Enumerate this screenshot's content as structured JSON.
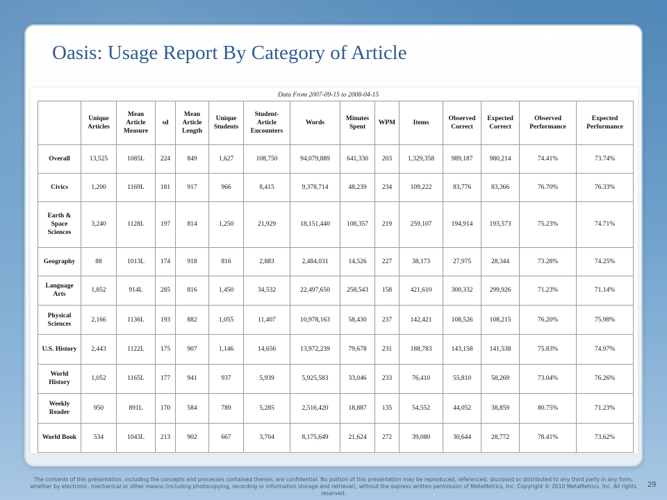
{
  "slide": {
    "title": "Oasis: Usage Report By Category of Article",
    "page_number": "29",
    "footer": "The contents of this presentation, including the concepts and processes contained therein, are confidential. No portion of this presentation may be reproduced, referenced, disclosed or distributed to any third party in any form, whether by electronic, mechanical or other means (including photocopying, recording or information storage and retrieval), without the express written permission of MetaMetrics, Inc. Copyright © 2010 MetaMetrics, Inc. All rights reserved."
  },
  "table": {
    "caption": "Data From 2007-09-15 to 2008-04-15",
    "headers": [
      "",
      "Unique Articles",
      "Mean Article Measure",
      "sd",
      "Mean Article Length",
      "Unique Students",
      "Student-Article Encounters",
      "Words",
      "Minutes Spent",
      "WPM",
      "Items",
      "Observed Correct",
      "Expected Correct",
      "Observed Performance",
      "Expected Performance"
    ],
    "rows": [
      {
        "category": "Overall",
        "cells": [
          "13,525",
          "1085L",
          "224",
          "849",
          "1,627",
          "108,750",
          "94,079,889",
          "641,330",
          "203",
          "1,329,358",
          "989,187",
          "980,214",
          "74.41%",
          "73.74%"
        ]
      },
      {
        "category": "Civics",
        "cells": [
          "1,200",
          "1169L",
          "181",
          "917",
          "966",
          "8,415",
          "9,378,714",
          "48,239",
          "234",
          "109,222",
          "83,776",
          "83,366",
          "76.70%",
          "76.33%"
        ]
      },
      {
        "category": "Earth & Space Sciences",
        "cells": [
          "3,240",
          "1128L",
          "197",
          "814",
          "1,250",
          "21,929",
          "18,151,440",
          "108,357",
          "219",
          "259,107",
          "194,914",
          "193,573",
          "75.23%",
          "74.71%"
        ]
      },
      {
        "category": "Geography",
        "cells": [
          "88",
          "1013L",
          "174",
          "918",
          "816",
          "2,883",
          "2,484,031",
          "14,526",
          "227",
          "38,173",
          "27,975",
          "28,344",
          "73.28%",
          "74.25%"
        ]
      },
      {
        "category": "Language Arts",
        "cells": [
          "1,852",
          "914L",
          "285",
          "816",
          "1,450",
          "34,532",
          "22,497,650",
          "258,543",
          "158",
          "421,610",
          "300,332",
          "299,926",
          "71.23%",
          "71.14%"
        ]
      },
      {
        "category": "Physical Sciences",
        "cells": [
          "2,166",
          "1136L",
          "193",
          "882",
          "1,055",
          "11,407",
          "10,978,163",
          "58,430",
          "237",
          "142,421",
          "108,526",
          "108,215",
          "76.20%",
          "75.98%"
        ]
      },
      {
        "category": "U.S. History",
        "cells": [
          "2,443",
          "1122L",
          "175",
          "907",
          "1,146",
          "14,656",
          "13,972,239",
          "79,678",
          "231",
          "188,783",
          "143,158",
          "141,538",
          "75.83%",
          "74.97%"
        ]
      },
      {
        "category": "World History",
        "cells": [
          "1,052",
          "1165L",
          "177",
          "941",
          "937",
          "5,939",
          "5,925,583",
          "33,046",
          "233",
          "76,410",
          "55,810",
          "58,269",
          "73.04%",
          "76.26%"
        ]
      },
      {
        "category": "Weekly Reader",
        "cells": [
          "950",
          "891L",
          "170",
          "584",
          "789",
          "5,285",
          "2,516,420",
          "18,887",
          "135",
          "54,552",
          "44,052",
          "38,859",
          "80.75%",
          "71.23%"
        ]
      },
      {
        "category": "World Book",
        "cells": [
          "534",
          "1043L",
          "213",
          "902",
          "667",
          "3,704",
          "8,175,649",
          "21,624",
          "272",
          "39,080",
          "30,644",
          "28,772",
          "78.41%",
          "73.62%"
        ]
      }
    ]
  }
}
